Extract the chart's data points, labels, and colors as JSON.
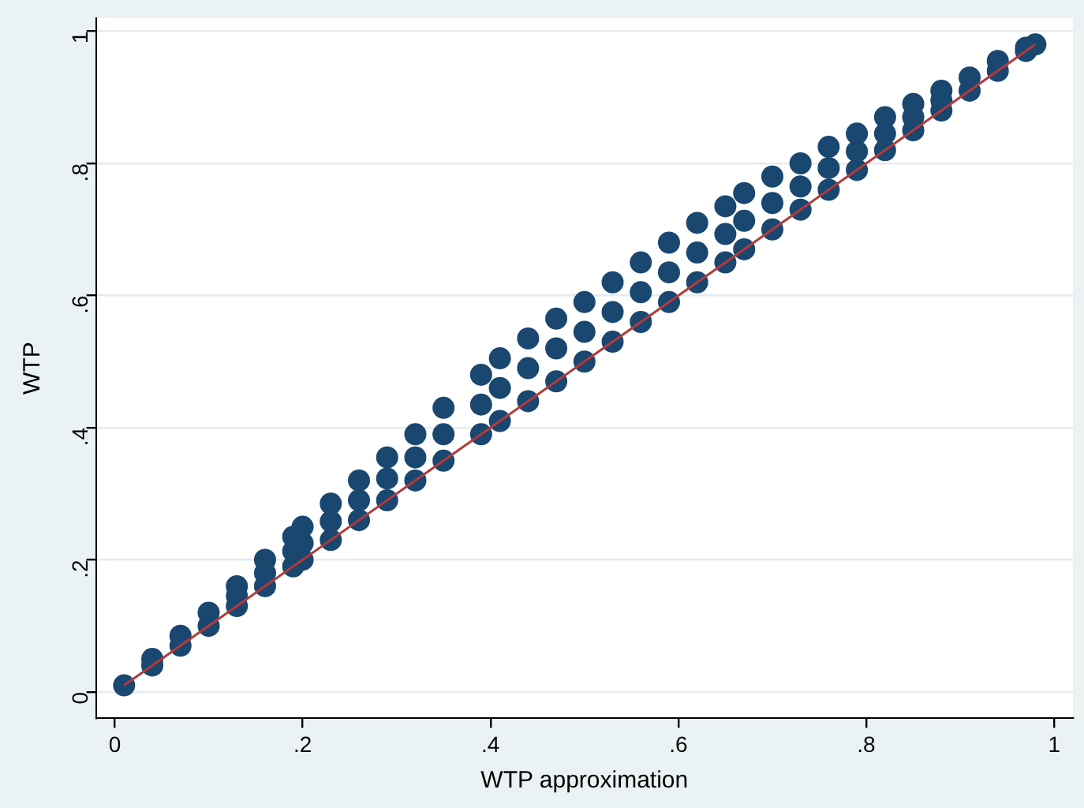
{
  "chart_data": {
    "type": "scatter",
    "xlabel": "WTP approximation",
    "ylabel": "WTP",
    "xlim": [
      -0.02,
      1.02
    ],
    "ylim": [
      -0.04,
      1.02
    ],
    "xticks": [
      0,
      {
        "value": 0.2,
        "label": ".2"
      },
      {
        "value": 0.4,
        "label": ".4"
      },
      {
        "value": 0.6,
        "label": ".6"
      },
      {
        "value": 0.8,
        "label": ".8"
      },
      1
    ],
    "yticks": [
      0,
      {
        "value": 0.2,
        "label": ".2"
      },
      {
        "value": 0.4,
        "label": ".4"
      },
      {
        "value": 0.6,
        "label": ".6"
      },
      {
        "value": 0.8,
        "label": ".8"
      },
      1
    ],
    "grid": "y",
    "marker": "circle",
    "series": [
      {
        "color": "#1a476f",
        "x": [
          0.01,
          0.04,
          0.07,
          0.1,
          0.13,
          0.16,
          0.19,
          0.2,
          0.23,
          0.26,
          0.29,
          0.32,
          0.35,
          0.39,
          0.41,
          0.44,
          0.47,
          0.5,
          0.53,
          0.56,
          0.59,
          0.62,
          0.65,
          0.67,
          0.7,
          0.73,
          0.76,
          0.79,
          0.82,
          0.85,
          0.88,
          0.91,
          0.94,
          0.97,
          0.98,
          0.13,
          0.16,
          0.19,
          0.2,
          0.23,
          0.26,
          0.29,
          0.32,
          0.35,
          0.39,
          0.41,
          0.44,
          0.47,
          0.5,
          0.53,
          0.56,
          0.59,
          0.62,
          0.65,
          0.67,
          0.7,
          0.73,
          0.76,
          0.79,
          0.82,
          0.85,
          0.88,
          0.04,
          0.07,
          0.1,
          0.13,
          0.16,
          0.19,
          0.2,
          0.23,
          0.26,
          0.29,
          0.32,
          0.35,
          0.39,
          0.41,
          0.44,
          0.47,
          0.5,
          0.53,
          0.56,
          0.59,
          0.62,
          0.65,
          0.67,
          0.7,
          0.73,
          0.76,
          0.79,
          0.82,
          0.85,
          0.88,
          0.91,
          0.94,
          0.97
        ],
        "values": [
          0.01,
          0.04,
          0.07,
          0.1,
          0.13,
          0.16,
          0.19,
          0.2,
          0.23,
          0.26,
          0.29,
          0.32,
          0.35,
          0.39,
          0.41,
          0.44,
          0.47,
          0.5,
          0.53,
          0.56,
          0.59,
          0.62,
          0.65,
          0.67,
          0.7,
          0.73,
          0.76,
          0.79,
          0.82,
          0.85,
          0.88,
          0.91,
          0.94,
          0.97,
          0.98,
          0.145,
          0.18,
          0.213,
          0.225,
          0.258,
          0.29,
          0.323,
          0.355,
          0.39,
          0.435,
          0.46,
          0.49,
          0.52,
          0.545,
          0.575,
          0.605,
          0.635,
          0.665,
          0.693,
          0.713,
          0.74,
          0.765,
          0.793,
          0.818,
          0.845,
          0.87,
          0.895,
          0.05,
          0.085,
          0.12,
          0.16,
          0.2,
          0.235,
          0.25,
          0.285,
          0.32,
          0.355,
          0.39,
          0.43,
          0.48,
          0.505,
          0.535,
          0.565,
          0.59,
          0.62,
          0.65,
          0.68,
          0.71,
          0.735,
          0.755,
          0.78,
          0.8,
          0.825,
          0.845,
          0.87,
          0.89,
          0.91,
          0.93,
          0.955,
          0.975
        ]
      },
      {
        "type": "line",
        "color": "#b23a3a",
        "marker": "none",
        "x": [
          0.01,
          0.98
        ],
        "values": [
          0.01,
          0.98
        ]
      }
    ]
  }
}
